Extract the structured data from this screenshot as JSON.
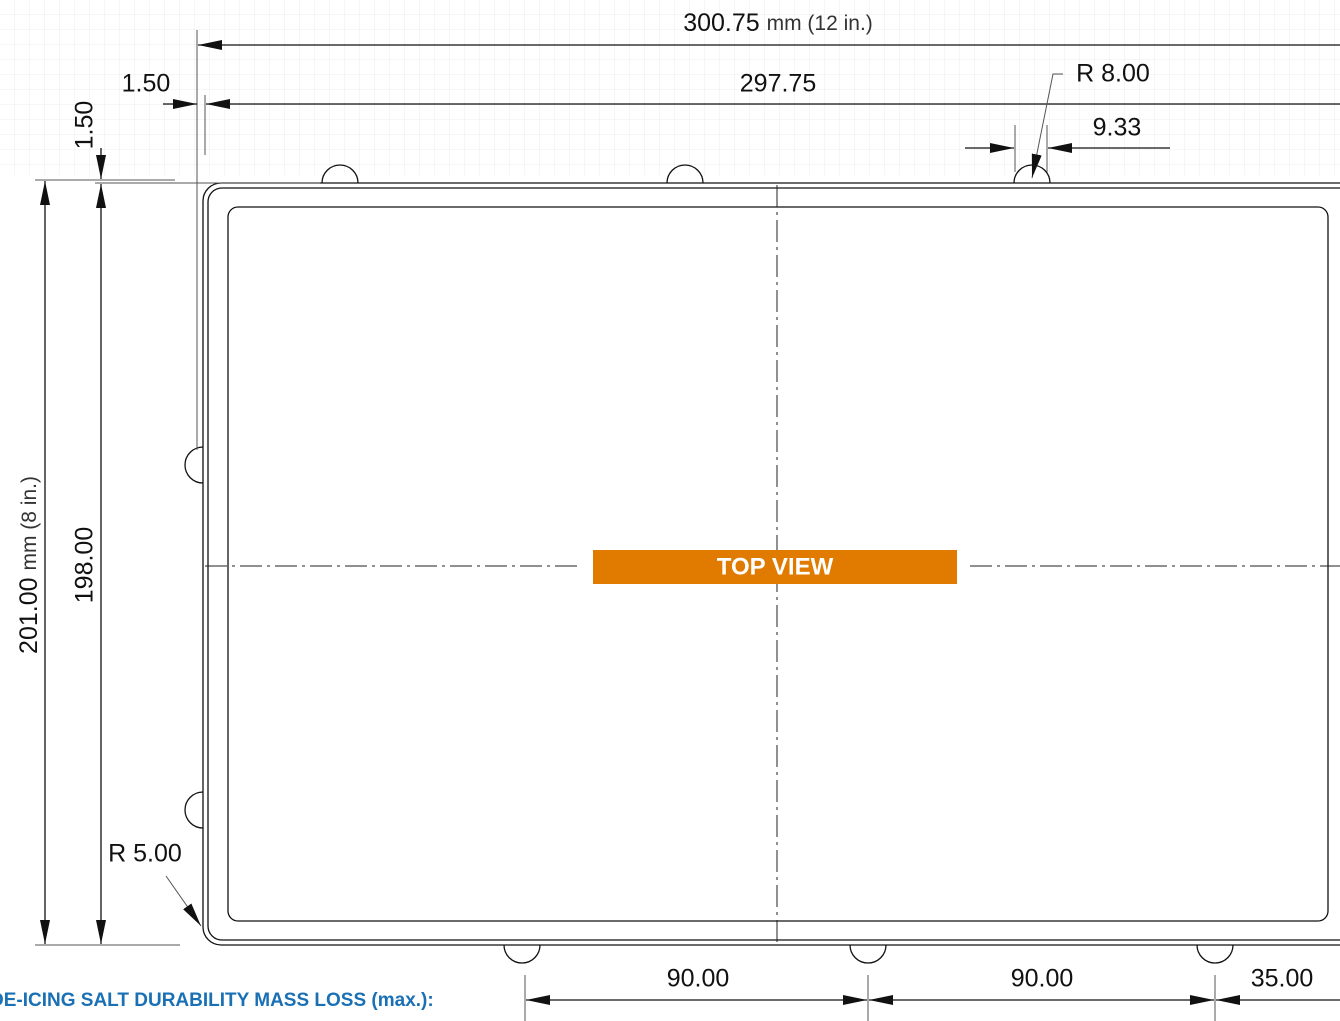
{
  "dimensions": {
    "overall_width": {
      "value": "300.75",
      "unit": "mm (12 in.)"
    },
    "inner_width": "297.75",
    "offset_x": "1.50",
    "offset_y": "1.50",
    "tab_radius": "R 8.00",
    "tab_width": "9.33",
    "overall_height": {
      "value": "201.00",
      "unit": "mm (8 in.)"
    },
    "inner_height": "198.00",
    "corner_radius": "R 5.00",
    "spacing": [
      "90.00",
      "90.00",
      "35.00"
    ]
  },
  "view_label": "TOP VIEW",
  "footer": {
    "heading": "DE-ICING SALT DURABILITY MASS LOSS (max.):"
  }
}
